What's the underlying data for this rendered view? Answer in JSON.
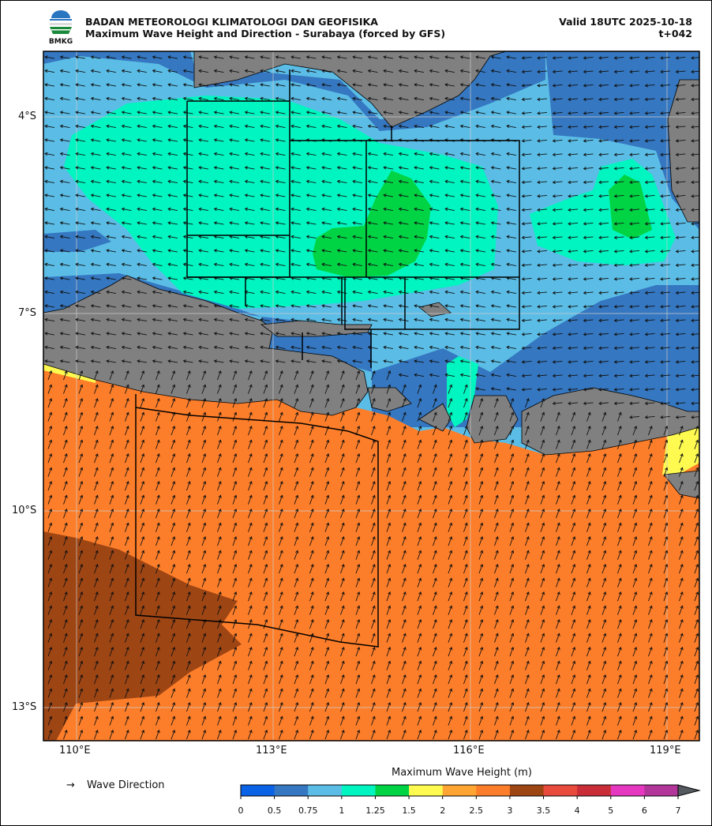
{
  "header": {
    "agency": "BADAN METEOROLOGI KLIMATOLOGI DAN GEOFISIKA",
    "title": "Maximum Wave Height and Direction - Surabaya (forced by GFS)",
    "valid": "Valid 18UTC 2025-10-18",
    "lead": "t+042",
    "logo_text": "BMKG"
  },
  "map": {
    "lon_ticks": [
      "110°E",
      "113°E",
      "116°E",
      "119°E"
    ],
    "lat_ticks": [
      "4°S",
      "7°S",
      "10°S",
      "13°S"
    ],
    "colors": {
      "land": "#808080",
      "grid": "#cccccc"
    }
  },
  "legend": {
    "arrow_symbol": "→",
    "label": "Wave Direction"
  },
  "colorbar": {
    "title": "Maximum Wave Height (m)",
    "ticks": [
      "0",
      "0.5",
      "0.75",
      "1",
      "1.25",
      "1.5",
      "2",
      "2.5",
      "3",
      "3.5",
      "4",
      "5",
      "6",
      "7"
    ],
    "colors": [
      "#0a62e6",
      "#3577c0",
      "#5bbde6",
      "#00f5c0",
      "#00d444",
      "#fefa50",
      "#fea533",
      "#fd7e2a",
      "#9e4514",
      "#e84a3c",
      "#c92d38",
      "#e637c0",
      "#b23599"
    ],
    "extend_color": "#555a60"
  }
}
